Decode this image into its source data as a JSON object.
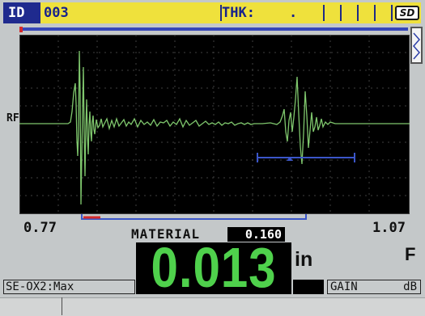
{
  "status_bar": {
    "id_label": "ID",
    "id_value": "003",
    "thk_label": "THK:",
    "thk_value": ".",
    "sd_icon": "SD"
  },
  "waveform": {
    "rf_label": "RF",
    "colors": {
      "background": "#000000",
      "grid": "#3f3f3f",
      "trace": "#7fc76d",
      "gate": "#3b56c9"
    }
  },
  "scale": {
    "left": "0.77",
    "right": "1.07"
  },
  "material": {
    "label": "MATERIAL",
    "value": "0.160"
  },
  "reading": {
    "value": "0.013",
    "unit": "in",
    "mode_flag": "F",
    "color": "#4fd14c"
  },
  "status_fields": {
    "transducer": "SE-OX2:Max",
    "gain_label": "GAIN",
    "gain_unit": "dB"
  },
  "icons": {
    "freeze": "waveform-freeze-icon",
    "sd_card": "sd-card-icon"
  }
}
